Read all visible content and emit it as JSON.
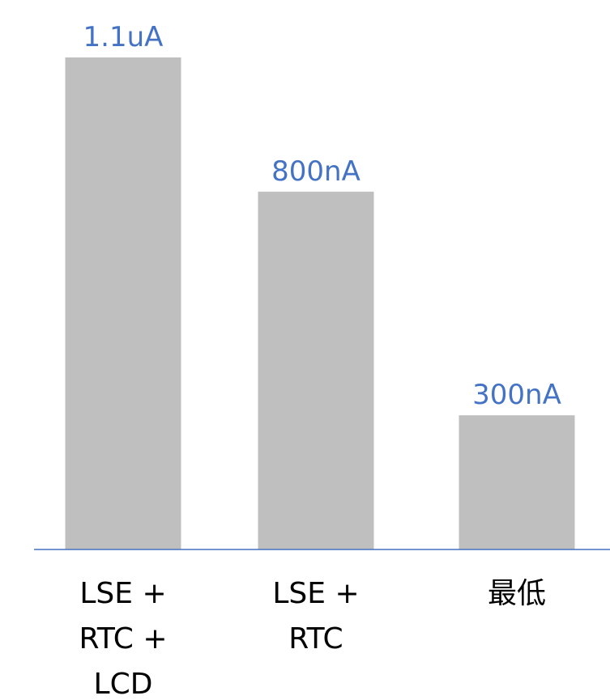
{
  "chart_data": {
    "type": "bar",
    "categories": [
      [
        "LSE +",
        "RTC +",
        "LCD"
      ],
      [
        "LSE +",
        "RTC"
      ],
      [
        "最低"
      ]
    ],
    "values": [
      1100,
      800,
      300
    ],
    "unit": "nA",
    "data_labels": [
      "1.1uA",
      "800nA",
      "300nA"
    ],
    "colors": {
      "bar": "#bfbfbf",
      "data_label": "#4472c4",
      "axis": "#4472c4",
      "category_label": "#000000"
    },
    "title": "",
    "xlabel": "",
    "ylabel": "",
    "ylim": [
      0,
      1100
    ],
    "grid": false,
    "legend": "none"
  }
}
